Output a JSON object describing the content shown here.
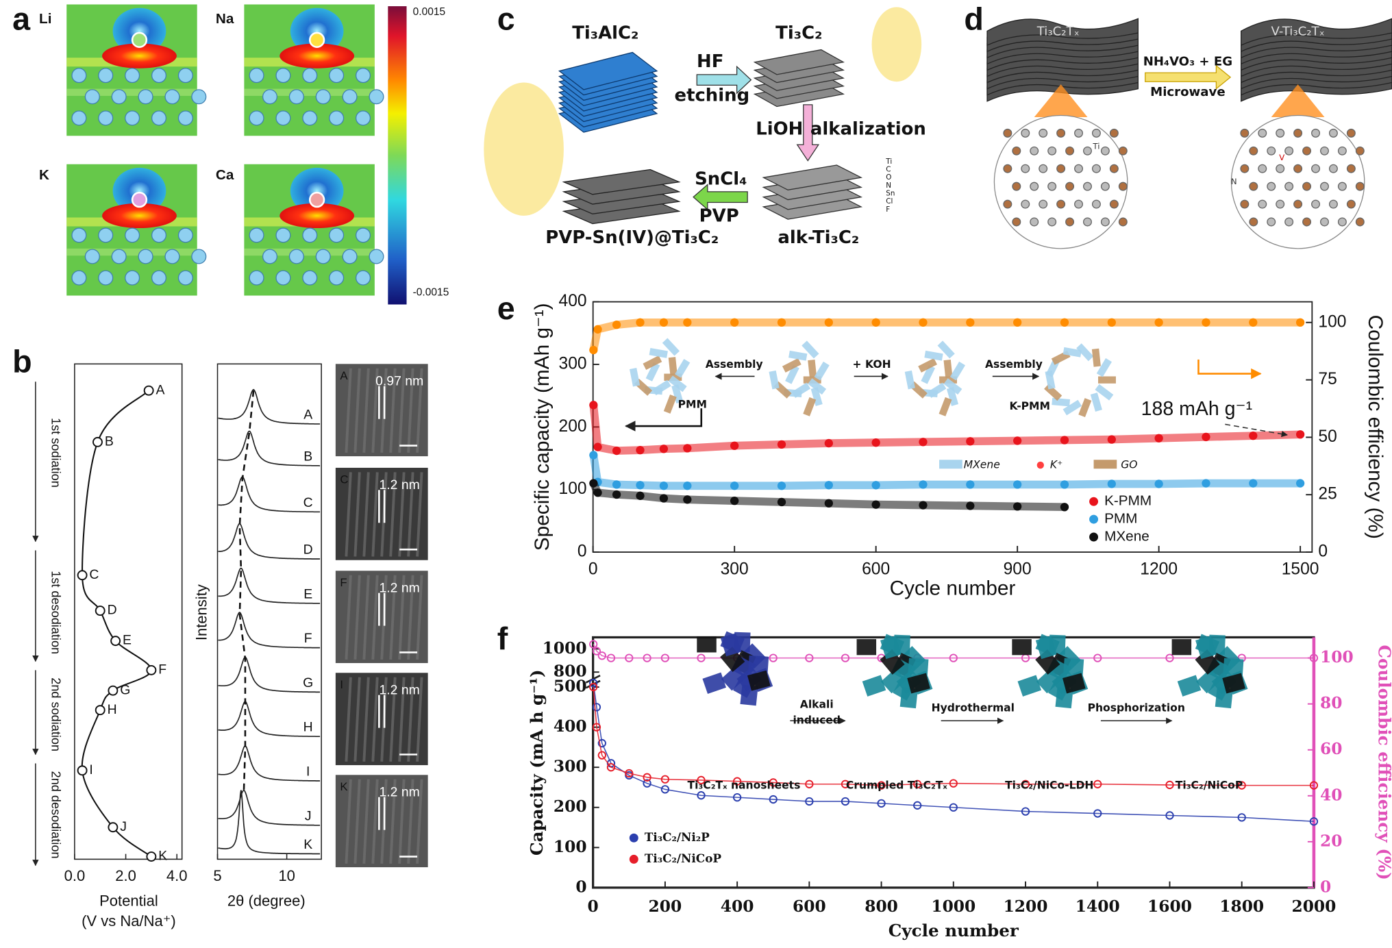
{
  "panel_labels": [
    "a",
    "b",
    "c",
    "d",
    "e",
    "f"
  ],
  "panel_a": {
    "elements": [
      "Li",
      "Na",
      "K",
      "Ca"
    ],
    "colorbar_ticks": [
      0.0015,
      -0.0015
    ]
  },
  "panel_b": {
    "stages": [
      "1st sodiation",
      "1st desodiation",
      "2nd sodiation",
      "2nd desodiation"
    ],
    "tem": {
      "labels": [
        "A",
        "C",
        "F",
        "I",
        "K"
      ],
      "spacings": [
        "0.97 nm",
        "1.2 nm",
        "1.2 nm",
        "1.2 nm",
        "1.2 nm"
      ]
    }
  },
  "panel_c": {
    "texts": [
      "Ti₃AlC₂",
      "HF",
      "etching",
      "Ti₃C₂",
      "LiOH",
      "alkalization",
      "SnCl₄",
      "PVP",
      "alk-Ti₃C₂",
      "PVP-Sn(IV)@Ti₃C₂",
      "Ti",
      "C",
      "O",
      "N",
      "Sn",
      "Cl",
      "F"
    ]
  },
  "panel_d": {
    "texts": [
      "Ti₃C₂Tₓ",
      "NH₄VO₃ + EG",
      "Microwave",
      "V-Ti₃C₂Tₓ",
      "Ti",
      "N",
      "V"
    ]
  },
  "panel_e_inset": {
    "texts": [
      "Assembly",
      "+ KOH",
      "Assembly",
      "PMM",
      "K-PMM",
      "MXene",
      "K⁺",
      "GO"
    ]
  },
  "panel_f_inset": {
    "texts": [
      "Alkali",
      "induced",
      "Hydrothermal",
      "Phosphorization",
      "Ti₃C₂Tₓ nanosheets",
      "Crumpled Ti₃C₂Tₓ",
      "Ti₃C₂/NiCo-LDH",
      "Ti₃C₂/NiCoP"
    ]
  },
  "chart_data": [
    {
      "type": "line",
      "orientation": "vertical",
      "labels": [
        "A",
        "B",
        "C",
        "D",
        "E",
        "F",
        "G",
        "H",
        "I",
        "J",
        "K"
      ],
      "values": [
        2.9,
        0.9,
        0.3,
        1.0,
        1.6,
        3.0,
        1.5,
        1.0,
        0.3,
        1.5,
        3.0
      ],
      "xlim": [
        0,
        4.2
      ],
      "xticks": [
        {
          "value": 0,
          "label": "0.0"
        },
        {
          "value": 2,
          "label": "2.0"
        },
        {
          "value": 4,
          "label": "4.0"
        }
      ],
      "xlabel": [
        "Potential",
        "(V vs Na/Na⁺)"
      ],
      "color": "#111111"
    },
    {
      "type": "xrd",
      "labels": [
        "A",
        "B",
        "C",
        "D",
        "E",
        "F",
        "G",
        "H",
        "I",
        "J",
        "K"
      ],
      "peaks": [
        7.6,
        7.3,
        6.8,
        6.6,
        6.7,
        6.6,
        7.0,
        7.0,
        7.0,
        6.9,
        6.7
      ],
      "xlim": [
        5,
        12.5
      ],
      "xticks": [
        5,
        10
      ],
      "xlabel": "2θ (degree)",
      "ylabel": "Intensity",
      "color": "#222222"
    },
    {
      "type": "scatter",
      "xlabel": "Cycle number",
      "ylabel": "Specific capacity (mAh g⁻¹)",
      "y2label": "Coulombic efficiency (%)",
      "xlim": [
        0,
        1525
      ],
      "xticks": [
        0,
        300,
        600,
        900,
        1200,
        1500
      ],
      "ylim": [
        0,
        400
      ],
      "yticks": [
        0,
        100,
        200,
        300,
        400
      ],
      "y2lim": [
        0,
        109
      ],
      "y2ticks": [
        0,
        25,
        50,
        75,
        100
      ],
      "annotations": [
        "188 mAh g⁻¹"
      ],
      "series": [
        {
          "name": "K-PMM",
          "color": "#e8141c",
          "x": [
            1,
            10,
            50,
            100,
            150,
            200,
            300,
            400,
            500,
            600,
            700,
            800,
            900,
            1000,
            1100,
            1200,
            1300,
            1400,
            1500
          ],
          "values": [
            235,
            168,
            162,
            163,
            165,
            166,
            170,
            172,
            174,
            175,
            176,
            177,
            178,
            179,
            180,
            182,
            184,
            186,
            188
          ]
        },
        {
          "name": "PMM",
          "color": "#2f9ee0",
          "x": [
            1,
            10,
            50,
            100,
            150,
            200,
            300,
            400,
            500,
            600,
            700,
            800,
            900,
            1000,
            1100,
            1200,
            1300,
            1400,
            1500
          ],
          "values": [
            155,
            112,
            108,
            107,
            106,
            106,
            106,
            106,
            107,
            107,
            108,
            108,
            108,
            108,
            109,
            109,
            110,
            110,
            110
          ]
        },
        {
          "name": "MXene",
          "color": "#111111",
          "x": [
            1,
            10,
            50,
            100,
            150,
            200,
            300,
            400,
            500,
            600,
            700,
            800,
            900,
            1000
          ],
          "values": [
            110,
            95,
            92,
            90,
            86,
            84,
            82,
            80,
            78,
            76,
            75,
            74,
            73,
            72
          ]
        },
        {
          "color": "#ff8c00",
          "axis": "y2",
          "x": [
            1,
            10,
            50,
            100,
            150,
            200,
            300,
            400,
            500,
            600,
            700,
            800,
            900,
            1000,
            1100,
            1200,
            1300,
            1400,
            1500
          ],
          "values": [
            88,
            97,
            99,
            100,
            100,
            100,
            100,
            100,
            100,
            100,
            100,
            100,
            100,
            100,
            100,
            100,
            100,
            100,
            100
          ]
        }
      ]
    },
    {
      "type": "scatter",
      "broken_axis": true,
      "xlabel": "Cycle number",
      "ylabel": "Capacity (mA h g⁻¹)",
      "y2label": "Coulombic efficiency (%)",
      "xlim": [
        0,
        2000
      ],
      "xticks": [
        0,
        200,
        400,
        600,
        800,
        1000,
        1200,
        1400,
        1600,
        1800,
        2000
      ],
      "ylim": [
        0,
        520
      ],
      "yticks": [
        0,
        100,
        200,
        300,
        400,
        500
      ],
      "ylim_upper": [
        740,
        1100
      ],
      "yticks_upper": [
        800,
        1000
      ],
      "y2lim": [
        0,
        109
      ],
      "y2ticks": [
        0,
        20,
        40,
        60,
        80,
        100
      ],
      "x": [
        1,
        10,
        25,
        50,
        100,
        150,
        200,
        300,
        400,
        500,
        600,
        700,
        800,
        900,
        1000,
        1200,
        1400,
        1600,
        1800,
        2000
      ],
      "series": [
        {
          "name": "Ti₃C₂/Ni₂P",
          "color": "#2b3fae",
          "values": [
            510,
            450,
            360,
            310,
            280,
            260,
            245,
            230,
            225,
            220,
            215,
            215,
            210,
            205,
            200,
            190,
            185,
            180,
            175,
            165
          ]
        },
        {
          "name": "Ti₃C₂/NiCoP",
          "color": "#e61e2a",
          "values": [
            500,
            400,
            330,
            300,
            285,
            275,
            270,
            268,
            265,
            262,
            258,
            258,
            255,
            258,
            260,
            258,
            258,
            256,
            255,
            255
          ]
        },
        {
          "color": "#e050b8",
          "axis": "y2",
          "values": [
            106,
            103,
            101,
            100,
            100,
            100,
            100,
            100,
            100,
            100,
            100,
            100,
            100,
            100,
            100,
            100,
            100,
            100,
            100,
            100
          ]
        }
      ]
    }
  ]
}
